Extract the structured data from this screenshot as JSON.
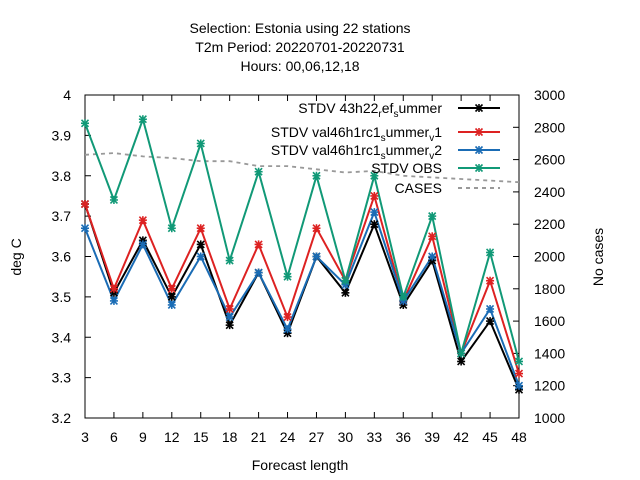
{
  "chart_data": {
    "type": "line",
    "title_lines": [
      "Selection: Estonia using     22 stations",
      "T2m   Period: 20220701-20220731",
      "Hours:  00,06,12,18"
    ],
    "xlabel": "Forecast length",
    "ylabel": "deg C",
    "y2label": "No cases",
    "x": [
      3,
      6,
      9,
      12,
      15,
      18,
      21,
      24,
      27,
      30,
      33,
      36,
      39,
      42,
      45,
      48
    ],
    "xlim": [
      3,
      48
    ],
    "ylim": [
      3.2,
      4.0
    ],
    "y_ticks": [
      "3.2",
      "3.3",
      "3.4",
      "3.5",
      "3.6",
      "3.7",
      "3.8",
      "3.9",
      "4"
    ],
    "y2lim": [
      1000,
      3000
    ],
    "y2_ticks": [
      "1000",
      "1200",
      "1400",
      "1600",
      "1800",
      "2000",
      "2200",
      "2400",
      "2600",
      "2800",
      "3000"
    ],
    "legend_position": "top-right",
    "series": [
      {
        "name": "STDV 43h22_ref_summer",
        "name_parts": [
          "STDV 43h22",
          "r",
          "ef",
          "s",
          "ummer"
        ],
        "color": "#000000",
        "axis": "y1",
        "values": [
          3.73,
          3.51,
          3.64,
          3.5,
          3.63,
          3.43,
          3.56,
          3.41,
          3.6,
          3.51,
          3.68,
          3.48,
          3.59,
          3.34,
          3.44,
          3.27
        ]
      },
      {
        "name": "STDV val46h1rc1_summer_v1",
        "name_parts": [
          "STDV val46h1rc1",
          "s",
          "ummer",
          "v",
          "1"
        ],
        "color": "#dd2222",
        "axis": "y1",
        "values": [
          3.73,
          3.52,
          3.69,
          3.52,
          3.67,
          3.47,
          3.63,
          3.45,
          3.67,
          3.54,
          3.75,
          3.49,
          3.65,
          3.36,
          3.54,
          3.31
        ]
      },
      {
        "name": "STDV val46h1rc1_summer_v2",
        "name_parts": [
          "STDV val46h1rc1",
          "s",
          "ummer",
          "v",
          "2"
        ],
        "color": "#1a6cb5",
        "axis": "y1",
        "values": [
          3.67,
          3.49,
          3.63,
          3.48,
          3.6,
          3.45,
          3.56,
          3.42,
          3.6,
          3.53,
          3.71,
          3.49,
          3.6,
          3.36,
          3.47,
          3.28
        ]
      },
      {
        "name": "STDV OBS",
        "color": "#119977",
        "axis": "y1",
        "values": [
          3.93,
          3.74,
          3.94,
          3.67,
          3.88,
          3.59,
          3.81,
          3.55,
          3.8,
          3.54,
          3.8,
          3.5,
          3.7,
          3.36,
          3.61,
          3.34
        ]
      },
      {
        "name": "CASES",
        "color": "#999999",
        "axis": "y2",
        "dashed": true,
        "values": [
          2630,
          2640,
          2620,
          2610,
          2590,
          2590,
          2560,
          2560,
          2540,
          2520,
          2530,
          2500,
          2490,
          2480,
          2470,
          2460
        ]
      }
    ]
  }
}
